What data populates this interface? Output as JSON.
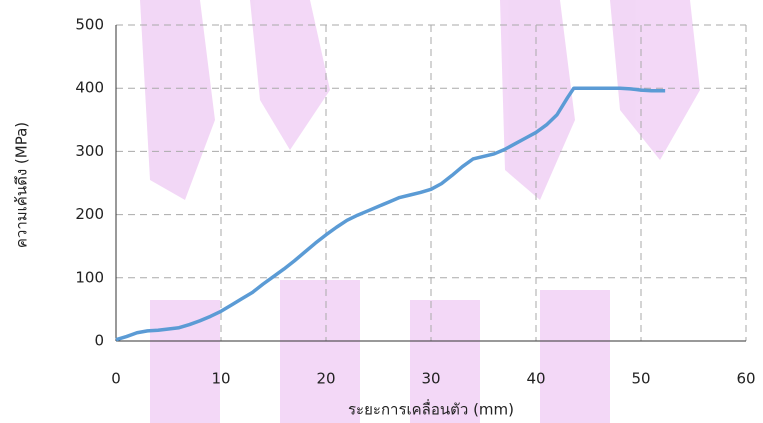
{
  "chart_data": {
    "type": "line",
    "x_label": "ระยะการเคลื่อนตัว (mm)",
    "y_label": "ความเค้นดึง (MPa)",
    "xlim": [
      0,
      60
    ],
    "xticks": [
      0,
      10,
      20,
      30,
      40,
      50,
      60
    ],
    "ylim": [
      0,
      500
    ],
    "yticks": [
      0,
      100,
      200,
      300,
      400,
      500
    ],
    "grid": true,
    "series": [
      {
        "color": "#5b9bd5",
        "x": [
          0,
          1,
          2,
          3,
          4,
          5,
          6,
          7,
          8,
          9,
          10,
          11,
          12,
          13,
          14,
          15,
          16,
          17,
          18,
          19,
          20,
          21,
          22,
          23,
          24,
          25,
          26,
          27,
          28,
          29,
          30,
          31,
          32,
          33,
          34,
          35,
          36,
          37,
          38,
          39,
          40,
          41,
          42,
          43,
          43.6,
          45,
          48,
          49,
          50,
          51,
          52.3
        ],
        "values": [
          2,
          7,
          13,
          16,
          17,
          19,
          21,
          26,
          32,
          39,
          47,
          57,
          67,
          77,
          90,
          102,
          114,
          127,
          141,
          155,
          168,
          180,
          191,
          199,
          206,
          213,
          220,
          227,
          231,
          235,
          240,
          249,
          262,
          276,
          288,
          292,
          296,
          303,
          312,
          321,
          330,
          342,
          358,
          385,
          400,
          400,
          400,
          399,
          397,
          396,
          396
        ]
      }
    ]
  }
}
